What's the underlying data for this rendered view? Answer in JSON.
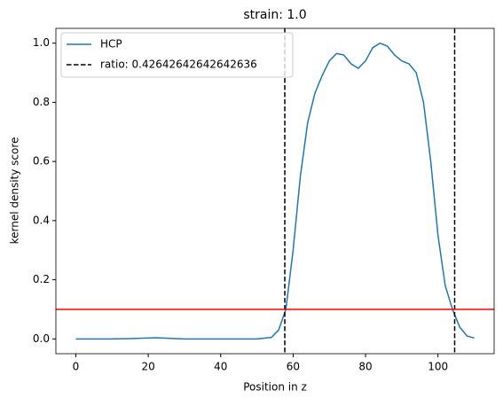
{
  "chart_data": {
    "type": "line",
    "title": "strain: 1.0",
    "xlabel": "Position in z",
    "ylabel": "kernel density score",
    "x": [
      0,
      10,
      15,
      22,
      30,
      40,
      50,
      54,
      56,
      58,
      60,
      62,
      64,
      66,
      68,
      70,
      72,
      74,
      76,
      78,
      80,
      82,
      84,
      86,
      88,
      90,
      92,
      94,
      96,
      98,
      100,
      102,
      104,
      106,
      108,
      110
    ],
    "series": [
      {
        "name": "HCP",
        "color": "#1f77b4",
        "values": [
          0,
          0,
          0.001,
          0.004,
          0,
          0,
          0,
          0.005,
          0.03,
          0.1,
          0.3,
          0.55,
          0.73,
          0.83,
          0.89,
          0.94,
          0.965,
          0.96,
          0.93,
          0.915,
          0.94,
          0.985,
          1.0,
          0.99,
          0.96,
          0.94,
          0.93,
          0.9,
          0.8,
          0.6,
          0.35,
          0.18,
          0.1,
          0.04,
          0.01,
          0.003
        ]
      }
    ],
    "vlines": {
      "name": "ratio: 0.42642642642642636",
      "color": "#000000",
      "values": [
        57.7,
        104.6
      ]
    },
    "hlines": {
      "color": "#ff0000",
      "values": [
        0.1
      ]
    },
    "xlim": [
      -5.5,
      115.5
    ],
    "ylim": [
      -0.05,
      1.05
    ],
    "xticks": [
      0,
      20,
      40,
      60,
      80,
      100
    ],
    "yticks": [
      {
        "value": 0,
        "label": "0.0"
      },
      {
        "value": 0.2,
        "label": "0.2"
      },
      {
        "value": 0.4,
        "label": "0.4"
      },
      {
        "value": 0.6,
        "label": "0.6"
      },
      {
        "value": 0.8,
        "label": "0.8"
      },
      {
        "value": 1.0,
        "label": "1.0"
      }
    ],
    "legend": "upper left"
  }
}
